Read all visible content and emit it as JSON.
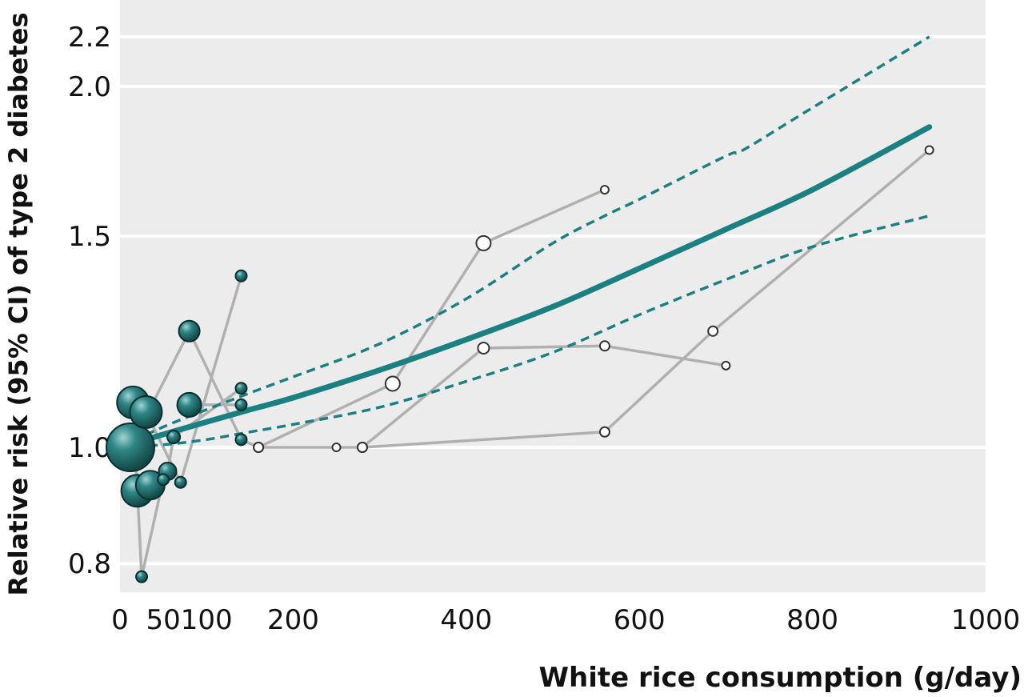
{
  "chart_data": {
    "type": "line",
    "title": "",
    "xlabel": "White rice consumption (g/day)",
    "ylabel": "Relative risk (95% CI) of type 2 diabetes",
    "xlim": [
      0,
      1000
    ],
    "ylim": [
      0.63,
      2.22
    ],
    "y_scale": "log",
    "grid": true,
    "x_ticks": [
      0,
      50,
      100,
      200,
      400,
      600,
      800,
      1000
    ],
    "x_tick_labels": [
      "0",
      "50",
      "100",
      "200",
      "400",
      "600",
      "800",
      "1000"
    ],
    "y_ticks": [
      0.8,
      1.0,
      1.5,
      2.0,
      2.2
    ],
    "y_tick_labels": [
      "0.8",
      "1.0",
      "1.5",
      "2.0",
      "2.2"
    ],
    "colors": {
      "fit": "#1a8080",
      "ci": "#1a8080",
      "study_line": "#b0b0b0",
      "bubble_fill": "#1f6f6f",
      "open_marker_fill": "#ffffff",
      "plot_background": "#ececec",
      "gridline": "#ffffff"
    },
    "series": [
      {
        "role": "pooled-fit",
        "style": "solid",
        "x": [
          0,
          50,
          100,
          150,
          200,
          300,
          400,
          500,
          600,
          700,
          800,
          935
        ],
        "y": [
          1.0,
          1.025,
          1.05,
          1.075,
          1.1,
          1.16,
          1.23,
          1.31,
          1.41,
          1.52,
          1.64,
          1.85
        ]
      },
      {
        "role": "ci-upper",
        "style": "dashed",
        "x": [
          0,
          50,
          100,
          150,
          200,
          300,
          400,
          500,
          560,
          600,
          700,
          720,
          800,
          935
        ],
        "y": [
          1.0,
          1.04,
          1.075,
          1.11,
          1.145,
          1.22,
          1.33,
          1.48,
          1.56,
          1.61,
          1.75,
          1.77,
          1.92,
          2.2
        ]
      },
      {
        "role": "ci-lower",
        "style": "dashed",
        "x": [
          0,
          50,
          100,
          150,
          200,
          300,
          400,
          500,
          600,
          700,
          800,
          935
        ],
        "y": [
          1.0,
          1.005,
          1.015,
          1.03,
          1.045,
          1.08,
          1.135,
          1.2,
          1.29,
          1.38,
          1.47,
          1.56
        ]
      },
      {
        "role": "study",
        "points": [
          {
            "x": 20,
            "y": 0.92,
            "size": 20,
            "filled": true
          },
          {
            "x": 35,
            "y": 0.93,
            "size": 18,
            "filled": true
          },
          {
            "x": 55,
            "y": 0.955,
            "size": 11,
            "filled": true
          },
          {
            "x": 62,
            "y": 1.02,
            "size": 8,
            "filled": true
          },
          {
            "x": 140,
            "y": 1.12,
            "size": 7,
            "filled": true
          }
        ]
      },
      {
        "role": "study",
        "points": [
          {
            "x": 15,
            "y": 1.09,
            "size": 20,
            "filled": true
          },
          {
            "x": 25,
            "y": 0.78,
            "size": 7,
            "filled": true
          },
          {
            "x": 50,
            "y": 0.94,
            "size": 7,
            "filled": true
          }
        ]
      },
      {
        "role": "study",
        "points": [
          {
            "x": 30,
            "y": 1.07,
            "size": 20,
            "filled": true
          },
          {
            "x": 70,
            "y": 0.935,
            "size": 7,
            "filled": true
          },
          {
            "x": 140,
            "y": 1.39,
            "size": 7,
            "filled": true
          }
        ]
      },
      {
        "role": "study",
        "points": [
          {
            "x": 12,
            "y": 1.0,
            "size": 30,
            "filled": true
          },
          {
            "x": 80,
            "y": 1.25,
            "size": 13,
            "filled": true
          },
          {
            "x": 140,
            "y": 1.015,
            "size": 7,
            "filled": true
          },
          {
            "x": 160,
            "y": 1.0,
            "size": 6,
            "filled": false
          },
          {
            "x": 250,
            "y": 1.0,
            "size": 5,
            "filled": false
          },
          {
            "x": 280,
            "y": 1.0,
            "size": 6,
            "filled": false
          },
          {
            "x": 560,
            "y": 1.03,
            "size": 6,
            "filled": false
          },
          {
            "x": 685,
            "y": 1.25,
            "size": 6,
            "filled": false
          },
          {
            "x": 935,
            "y": 1.77,
            "size": 5,
            "filled": false
          }
        ]
      },
      {
        "role": "study",
        "points": [
          {
            "x": 160,
            "y": 1.0,
            "size": 6,
            "filled": false
          },
          {
            "x": 315,
            "y": 1.13,
            "size": 9,
            "filled": false
          },
          {
            "x": 420,
            "y": 1.48,
            "size": 9,
            "filled": false
          },
          {
            "x": 560,
            "y": 1.64,
            "size": 5,
            "filled": false
          }
        ]
      },
      {
        "role": "study",
        "points": [
          {
            "x": 280,
            "y": 1.0,
            "size": 6,
            "filled": false
          },
          {
            "x": 420,
            "y": 1.21,
            "size": 7,
            "filled": false
          },
          {
            "x": 560,
            "y": 1.215,
            "size": 6,
            "filled": false
          },
          {
            "x": 700,
            "y": 1.17,
            "size": 5,
            "filled": false
          }
        ]
      },
      {
        "role": "study",
        "points": [
          {
            "x": 80,
            "y": 1.085,
            "size": 15,
            "filled": true
          },
          {
            "x": 140,
            "y": 1.085,
            "size": 7,
            "filled": true
          }
        ]
      }
    ]
  }
}
